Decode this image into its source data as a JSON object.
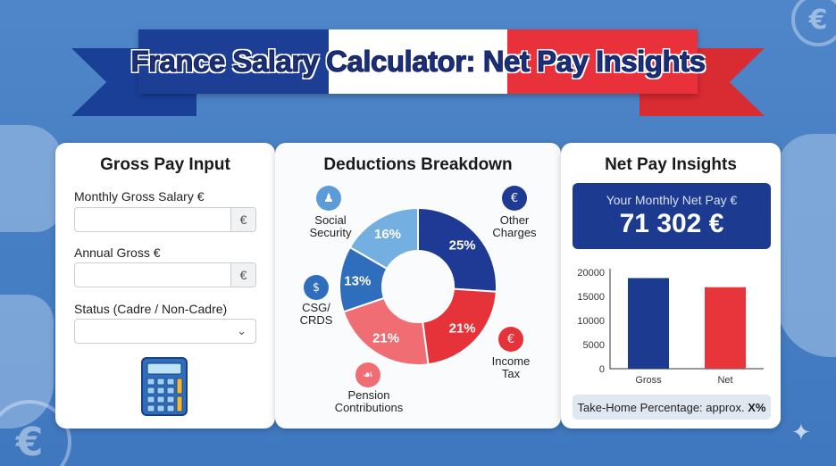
{
  "banner": {
    "title": "France Salary Calculator: Net Pay Insights"
  },
  "gross_card": {
    "title": "Gross Pay Input",
    "monthly_label": "Monthly Gross Salary €",
    "monthly_value": "",
    "monthly_unit": "€",
    "annual_label": "Annual Gross €",
    "annual_value": "",
    "annual_unit": "€",
    "status_label": "Status (Cadre / Non-Cadre)",
    "status_value": "",
    "calculator_icon": "calculator-icon"
  },
  "deductions_card": {
    "title": "Deductions Breakdown",
    "slices": [
      {
        "name": "Other Charges",
        "percent": 25,
        "label": "25%",
        "color": "#1f3a94",
        "icon": "document-euro-icon"
      },
      {
        "name": "Income Tax",
        "percent": 21,
        "label": "21%",
        "color": "#e53339",
        "icon": "money-bag-icon"
      },
      {
        "name": "Pension Contributions",
        "percent": 21,
        "label": "21%",
        "color": "#ef6d73",
        "icon": "hand-coin-icon"
      },
      {
        "name": "CSG/ CRDS",
        "percent": 13,
        "label": "13%",
        "color": "#2f6dbd",
        "icon": "coin-stack-icon"
      },
      {
        "name": "Social Security",
        "percent": 16,
        "label": "16%",
        "color": "#74afe2",
        "icon": "people-icon"
      }
    ],
    "annotations": {
      "social": [
        "Social",
        "Security"
      ],
      "csg": [
        "CSG/",
        "CRDS"
      ],
      "pension": [
        "Pension",
        "Contributions"
      ],
      "other": [
        "Other",
        "Charges"
      ],
      "income": [
        "Income",
        "Tax"
      ]
    }
  },
  "net_card": {
    "title": "Net Pay Insights",
    "net_label": "Your Monthly Net Pay €",
    "net_value": "71 302 €",
    "take_home_prefix": "Take-Home Percentage: approx. ",
    "take_home_value": "X%"
  },
  "chart_data": {
    "type": "bar",
    "categories": [
      "Gross",
      "Net"
    ],
    "values": [
      18800,
      16900
    ],
    "colors": [
      "#1c3a8f",
      "#e8343b"
    ],
    "ylim": [
      0,
      20000
    ],
    "yticks": [
      0,
      5000,
      10000,
      15000,
      20000
    ],
    "title": "",
    "xlabel": "",
    "ylabel": "",
    "grid": false
  },
  "colors": {
    "accent_blue": "#1c3a8f",
    "accent_red": "#e8313a",
    "background": "#4f86c9"
  }
}
